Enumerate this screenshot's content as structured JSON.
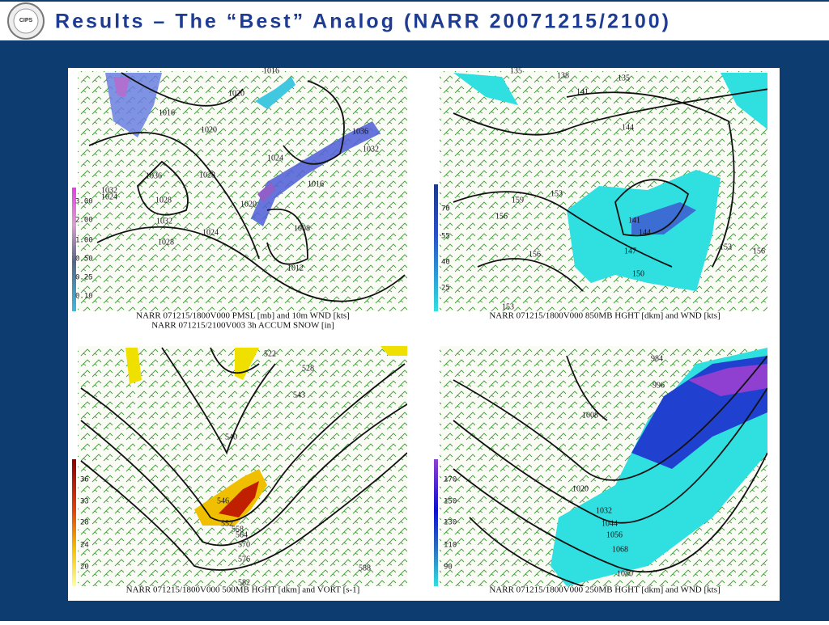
{
  "header": {
    "title": "Results – The “Best” Analog (NARR 20071215/2100)",
    "logo": "CIPS"
  },
  "panels": [
    {
      "caption": [
        "NARR 071215/1800V000 PMSL [mb] and 10m WND [kts]",
        "NARR 071215/2100V003 3h ACCUM SNOW [in]"
      ],
      "colorbar": [
        "3.00",
        "2.00",
        "1.00",
        "0.50",
        "0.25",
        "0.10"
      ],
      "contours": [
        "1016",
        "1020",
        "1020",
        "1016",
        "1024",
        "1028",
        "1036",
        "1032",
        "1024",
        "1028",
        "1032",
        "1028",
        "1024",
        "1020",
        "1016",
        "1008",
        "1012",
        "1036",
        "1032"
      ]
    },
    {
      "caption": [
        "NARR 071215/1800V000 850MB HGHT [dkm] and WND [kts]"
      ],
      "colorbar": [
        "70",
        "55",
        "40",
        "25"
      ],
      "contours": [
        "135",
        "138",
        "135",
        "141",
        "144",
        "159",
        "153",
        "156",
        "156",
        "141",
        "144",
        "147",
        "150",
        "153",
        "156",
        "153"
      ]
    },
    {
      "caption": [
        "NARR 071215/1800V000 500MB HGHT [dkm] and VORT [s-1]"
      ],
      "colorbar": [
        "36",
        "33",
        "28",
        "24",
        "20"
      ],
      "contours": [
        "522",
        "528",
        "543",
        "540",
        "546",
        "552",
        "558",
        "564",
        "570",
        "576",
        "582",
        "588"
      ]
    },
    {
      "caption": [
        "NARR 071215/1800V000 250MB HGHT [dkm] and WND [kts]"
      ],
      "colorbar": [
        "170",
        "150",
        "130",
        "110",
        "90"
      ],
      "contours": [
        "984",
        "996",
        "1008",
        "1020",
        "1032",
        "1044",
        "1056",
        "1068",
        "1080"
      ]
    }
  ]
}
